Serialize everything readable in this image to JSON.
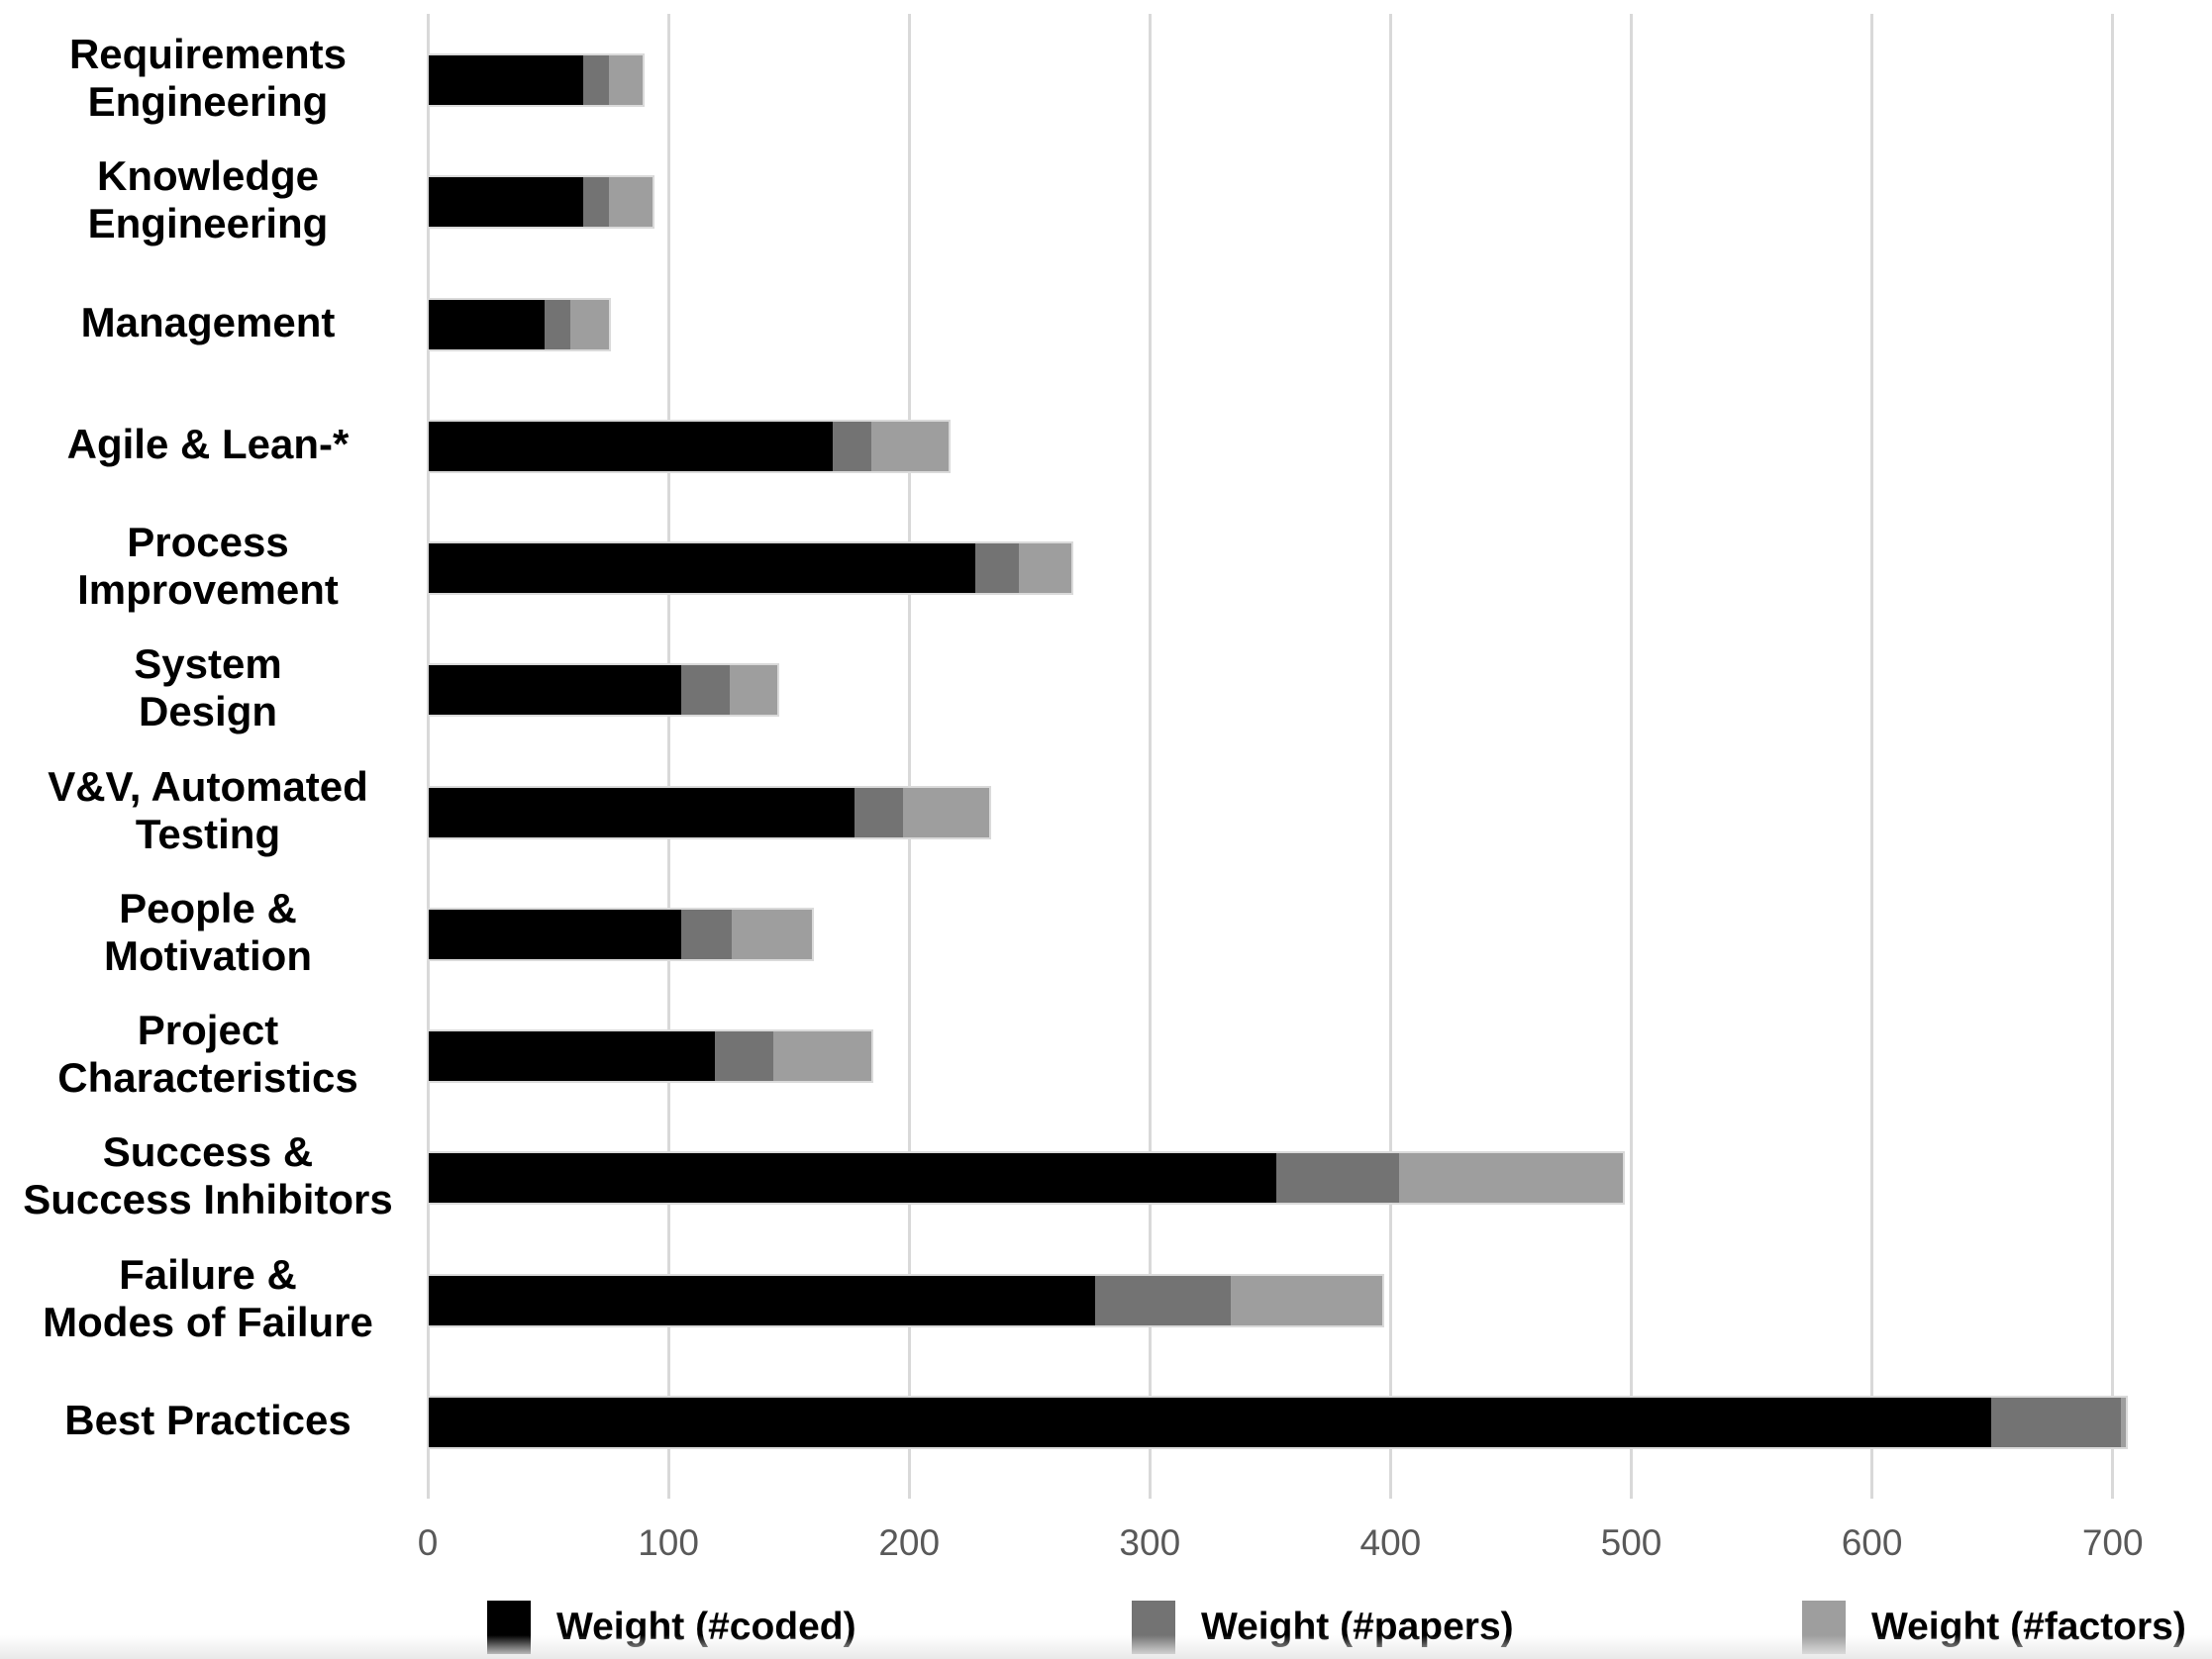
{
  "chart_data": {
    "type": "bar",
    "orientation": "horizontal",
    "stacked": true,
    "title": "",
    "xlabel": "",
    "ylabel": "",
    "xlim": [
      0,
      700
    ],
    "xticks": [
      0,
      100,
      200,
      300,
      400,
      500,
      600,
      700
    ],
    "grid": true,
    "legend_position": "bottom",
    "categories": [
      {
        "lines": [
          "Requirements",
          "Engineering"
        ]
      },
      {
        "lines": [
          "Knowledge",
          "Engineering"
        ]
      },
      {
        "lines": [
          "Management"
        ]
      },
      {
        "lines": [
          "Agile & Lean-*"
        ]
      },
      {
        "lines": [
          "Process",
          "Improvement"
        ]
      },
      {
        "lines": [
          "System",
          "Design"
        ]
      },
      {
        "lines": [
          "V&V, Automated",
          "Testing"
        ]
      },
      {
        "lines": [
          "People &",
          "Motivation"
        ]
      },
      {
        "lines": [
          "Project",
          "Characteristics"
        ]
      },
      {
        "lines": [
          "Success &",
          "Success Inhibitors"
        ]
      },
      {
        "lines": [
          "Failure &",
          "Modes of Failure"
        ]
      },
      {
        "lines": [
          "Best Practices"
        ]
      }
    ],
    "series": [
      {
        "name": "Weight (#coded)",
        "color": "#000000",
        "values": [
          64,
          64,
          48,
          168,
          227,
          105,
          177,
          105,
          119,
          352,
          277,
          649
        ]
      },
      {
        "name": "Weight (#papers)",
        "color": "#737373",
        "values": [
          11,
          11,
          11,
          16,
          18,
          20,
          20,
          21,
          24,
          51,
          56,
          54
        ]
      },
      {
        "name": "Weight (#factors)",
        "color": "#9e9e9e",
        "values": [
          14,
          18,
          16,
          32,
          22,
          20,
          36,
          33,
          41,
          93,
          63,
          2
        ]
      }
    ]
  },
  "axis": {
    "tick_labels": [
      "0",
      "100",
      "200",
      "300",
      "400",
      "500",
      "600",
      "700"
    ]
  },
  "legend": {
    "items": [
      {
        "label": "Weight (#coded)",
        "color": "#000000"
      },
      {
        "label": "Weight (#papers)",
        "color": "#737373"
      },
      {
        "label": "Weight (#factors)",
        "color": "#9e9e9e"
      }
    ]
  },
  "colors": {
    "gridline": "#d9d9d9",
    "bar_border": "#dadada",
    "tick_text": "#595959",
    "label_text": "#000000",
    "background": "#ffffff"
  }
}
